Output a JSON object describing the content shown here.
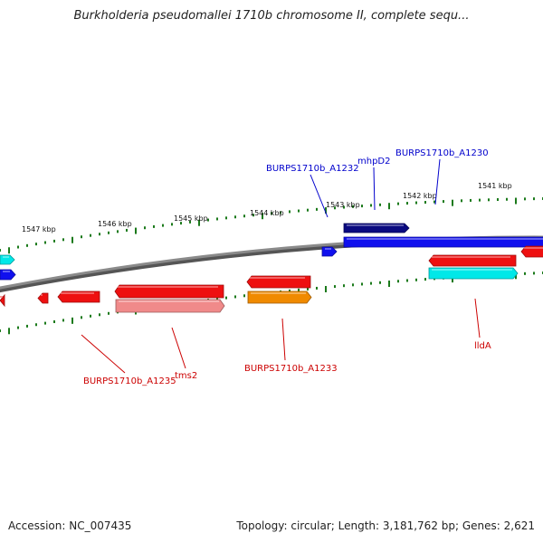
{
  "title": "Burkholderia pseudomallei 1710b chromosome II, complete sequ...",
  "footer": {
    "accession": "Accession: NC_007435",
    "topology": "Topology: circular; Length: 3,181,762 bp; Genes: 2,621"
  },
  "colors": {
    "backbone": "#8a8a8a",
    "tick": "#1b7a1b",
    "forward_label": "#0000cc",
    "reverse_label": "#cc0000",
    "blue": "#1010ee",
    "navy": "#0a0a80",
    "red": "#ee1010",
    "pink": "#f08a8a",
    "orange": "#f08a00",
    "cyan": "#00e8e8"
  },
  "tick_labels": [
    "1547 kbp",
    "1546 kbp",
    "1545 kbp",
    "1544 kbp",
    "1543 kbp",
    "1542 kbp",
    "1541 kbp"
  ],
  "gene_labels": {
    "forward": [
      "BURPS1710b_A1232",
      "mhpD2",
      "BURPS1710b_A1230"
    ],
    "reverse": [
      "BURPS1710b_A1235",
      "tms2",
      "BURPS1710b_A1233",
      "lldA"
    ]
  }
}
